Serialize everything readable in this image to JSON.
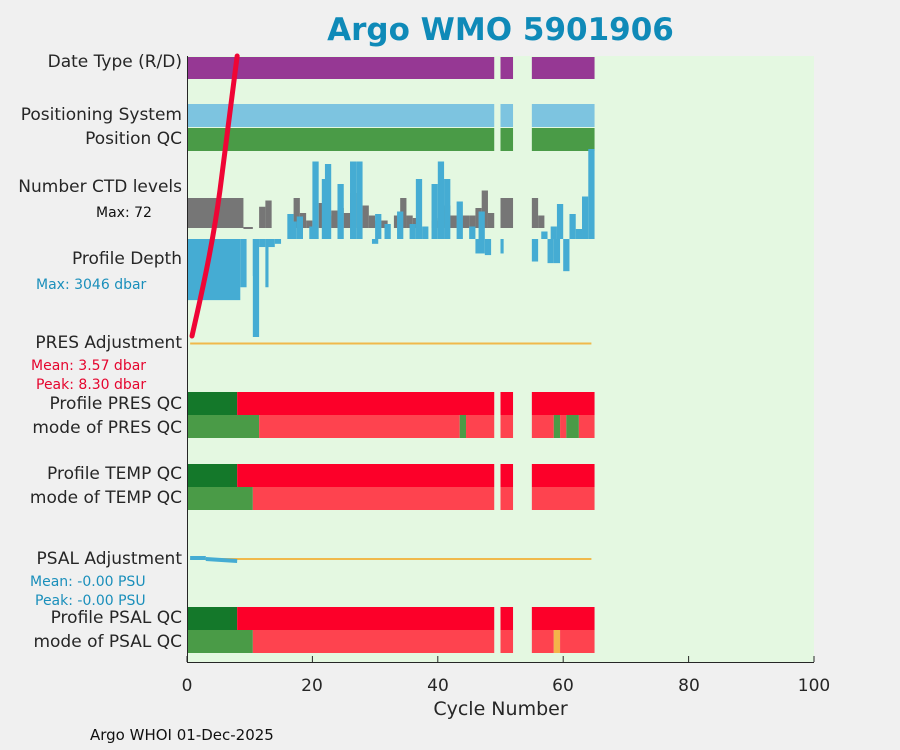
{
  "chart_data": {
    "type": "bar",
    "title": "Argo WMO 5901906",
    "xlabel": "Cycle Number",
    "xlim": [
      0,
      100
    ],
    "xticks": [
      "0",
      "20",
      "40",
      "60",
      "80",
      "100"
    ],
    "row_labels": {
      "date_type": "Date Type (R/D)",
      "positioning": "Positioning System",
      "position_qc": "Position QC",
      "ctd_levels": "Number CTD levels",
      "profile_depth": "Profile Depth",
      "pres_adj": "PRES Adjustment",
      "profile_pres_qc": "Profile PRES QC",
      "mode_pres_qc": "mode of PRES QC",
      "profile_temp_qc": "Profile TEMP QC",
      "mode_temp_qc": "mode of TEMP QC",
      "psal_adj": "PSAL Adjustment",
      "profile_psal_qc": "Profile PSAL QC",
      "mode_psal_qc": "mode of PSAL QC"
    },
    "stats": {
      "ctd_max": "Max: 72",
      "depth_max": "Max: 3046 dbar",
      "pres_mean": "Mean: 3.57 dbar",
      "pres_peak": "Peak: 8.30 dbar",
      "psal_mean": "Mean: -0.00 PSU",
      "psal_peak": "Peak: -0.00 PSU"
    },
    "cycle_segments": [
      [
        0,
        49
      ],
      [
        50,
        52
      ],
      [
        55,
        65
      ]
    ],
    "qc_segments": {
      "profile_pres_qc": [
        {
          "from": 0,
          "to": 8,
          "qc": "A"
        },
        {
          "from": 8,
          "to": 49,
          "qc": "F"
        },
        {
          "from": 50,
          "to": 52,
          "qc": "F"
        },
        {
          "from": 55,
          "to": 65,
          "qc": "F"
        }
      ],
      "mode_pres_qc": [
        {
          "from": 0,
          "to": 11.5,
          "qc": "1"
        },
        {
          "from": 11.5,
          "to": 43.5,
          "qc": "4"
        },
        {
          "from": 43.5,
          "to": 44.5,
          "qc": "1"
        },
        {
          "from": 44.5,
          "to": 49,
          "qc": "4"
        },
        {
          "from": 50,
          "to": 52,
          "qc": "4"
        },
        {
          "from": 55,
          "to": 58.5,
          "qc": "4"
        },
        {
          "from": 58.5,
          "to": 59.5,
          "qc": "1"
        },
        {
          "from": 59.5,
          "to": 60.5,
          "qc": "4"
        },
        {
          "from": 60.5,
          "to": 62.5,
          "qc": "1"
        },
        {
          "from": 62.5,
          "to": 65,
          "qc": "4"
        }
      ],
      "profile_temp_qc": [
        {
          "from": 0,
          "to": 8,
          "qc": "A"
        },
        {
          "from": 8,
          "to": 49,
          "qc": "F"
        },
        {
          "from": 50,
          "to": 52,
          "qc": "F"
        },
        {
          "from": 55,
          "to": 65,
          "qc": "F"
        }
      ],
      "mode_temp_qc": [
        {
          "from": 0,
          "to": 10.5,
          "qc": "1"
        },
        {
          "from": 10.5,
          "to": 49,
          "qc": "4"
        },
        {
          "from": 50,
          "to": 52,
          "qc": "4"
        },
        {
          "from": 55,
          "to": 65,
          "qc": "4"
        }
      ],
      "profile_psal_qc": [
        {
          "from": 0,
          "to": 8,
          "qc": "A"
        },
        {
          "from": 8,
          "to": 49,
          "qc": "F"
        },
        {
          "from": 50,
          "to": 52,
          "qc": "F"
        },
        {
          "from": 55,
          "to": 65,
          "qc": "F"
        }
      ],
      "mode_psal_qc": [
        {
          "from": 0,
          "to": 10.5,
          "qc": "1"
        },
        {
          "from": 10.5,
          "to": 49,
          "qc": "4"
        },
        {
          "from": 50,
          "to": 52,
          "qc": "4"
        },
        {
          "from": 55,
          "to": 58.5,
          "qc": "4"
        },
        {
          "from": 58.5,
          "to": 59.5,
          "qc": "3"
        },
        {
          "from": 59.5,
          "to": 65,
          "qc": "4"
        }
      ]
    },
    "ctd_levels": [
      {
        "from": 0,
        "to": 9,
        "levels": 24,
        "color": "gray"
      },
      {
        "from": 9,
        "to": 10.5,
        "levels": 0,
        "color": "gray"
      },
      {
        "from": 11.5,
        "to": 12.5,
        "levels": 17,
        "color": "gray"
      },
      {
        "from": 12.5,
        "to": 13.5,
        "levels": 22,
        "color": "gray"
      },
      {
        "from": 16,
        "to": 17,
        "levels": 20,
        "color": "blue"
      },
      {
        "from": 17,
        "to": 18,
        "levels": 24,
        "color": "gray"
      },
      {
        "from": 18,
        "to": 19,
        "levels": 12,
        "color": "gray"
      },
      {
        "from": 19,
        "to": 20,
        "levels": 6,
        "color": "gray"
      },
      {
        "from": 21,
        "to": 22,
        "levels": 20,
        "color": "gray"
      },
      {
        "from": 22,
        "to": 23,
        "levels": 10,
        "color": "gray"
      },
      {
        "from": 23,
        "to": 24,
        "levels": 14,
        "color": "gray"
      },
      {
        "from": 24,
        "to": 25,
        "levels": 16,
        "color": "gray"
      },
      {
        "from": 25,
        "to": 26,
        "levels": 12,
        "color": "gray"
      },
      {
        "from": 26,
        "to": 27,
        "levels": 28,
        "color": "gray"
      },
      {
        "from": 28,
        "to": 29,
        "levels": 18,
        "color": "gray"
      },
      {
        "from": 29,
        "to": 30,
        "levels": 10,
        "color": "gray"
      },
      {
        "from": 30,
        "to": 31,
        "levels": 6,
        "color": "gray"
      },
      {
        "from": 31,
        "to": 32,
        "levels": 6,
        "color": "gray"
      },
      {
        "from": 33,
        "to": 34,
        "levels": 10,
        "color": "gray"
      },
      {
        "from": 34,
        "to": 35,
        "levels": 24,
        "color": "gray"
      },
      {
        "from": 35,
        "to": 36,
        "levels": 10,
        "color": "gray"
      },
      {
        "from": 36,
        "to": 37,
        "levels": 8,
        "color": "gray"
      },
      {
        "from": 39,
        "to": 40,
        "levels": 6,
        "color": "gray"
      },
      {
        "from": 40,
        "to": 41,
        "levels": 8,
        "color": "gray"
      },
      {
        "from": 41,
        "to": 42,
        "levels": 18,
        "color": "gray"
      },
      {
        "from": 42,
        "to": 43,
        "levels": 10,
        "color": "gray"
      },
      {
        "from": 43,
        "to": 44,
        "levels": 10,
        "color": "gray"
      },
      {
        "from": 44,
        "to": 45,
        "levels": 10,
        "color": "gray"
      },
      {
        "from": 45,
        "to": 46,
        "levels": 10,
        "color": "gray"
      },
      {
        "from": 46,
        "to": 47,
        "levels": 16,
        "color": "gray"
      },
      {
        "from": 47,
        "to": 48,
        "levels": 30,
        "color": "gray"
      },
      {
        "from": 48,
        "to": 49,
        "levels": 12,
        "color": "gray"
      },
      {
        "from": 50,
        "to": 52,
        "levels": 24,
        "color": "gray"
      },
      {
        "from": 55,
        "to": 56,
        "levels": 24,
        "color": "gray"
      },
      {
        "from": 56,
        "to": 57,
        "levels": 10,
        "color": "gray"
      },
      {
        "from": 16.5,
        "to": 17.5,
        "levels": 14,
        "color": "blue"
      },
      {
        "from": 17.5,
        "to": 18.5,
        "levels": 18,
        "color": "blue"
      },
      {
        "from": 19.5,
        "to": 20.5,
        "levels": 10,
        "color": "blue"
      },
      {
        "from": 20,
        "to": 21,
        "levels": 62,
        "color": "blue"
      },
      {
        "from": 21.5,
        "to": 22.5,
        "levels": 48,
        "color": "blue"
      },
      {
        "from": 22,
        "to": 23,
        "levels": 60,
        "color": "blue"
      },
      {
        "from": 24,
        "to": 25,
        "levels": 44,
        "color": "blue"
      },
      {
        "from": 26,
        "to": 27,
        "levels": 62,
        "color": "blue"
      },
      {
        "from": 27,
        "to": 28,
        "levels": 62,
        "color": "blue"
      },
      {
        "from": 30,
        "to": 31,
        "levels": 20,
        "color": "blue"
      },
      {
        "from": 31.5,
        "to": 32.5,
        "levels": 12,
        "color": "blue"
      },
      {
        "from": 33.5,
        "to": 34.5,
        "levels": 22,
        "color": "blue"
      },
      {
        "from": 35.5,
        "to": 36.5,
        "levels": 12,
        "color": "blue"
      },
      {
        "from": 36.5,
        "to": 37.5,
        "levels": 48,
        "color": "blue"
      },
      {
        "from": 37.5,
        "to": 38.5,
        "levels": 10,
        "color": "blue"
      },
      {
        "from": 39,
        "to": 40,
        "levels": 44,
        "color": "blue"
      },
      {
        "from": 40,
        "to": 41,
        "levels": 62,
        "color": "blue"
      },
      {
        "from": 41,
        "to": 42,
        "levels": 48,
        "color": "blue"
      },
      {
        "from": 43,
        "to": 44,
        "levels": 30,
        "color": "blue"
      },
      {
        "from": 45,
        "to": 46,
        "levels": 10,
        "color": "blue"
      },
      {
        "from": 46.5,
        "to": 47.5,
        "levels": 22,
        "color": "blue"
      },
      {
        "from": 56.5,
        "to": 57.5,
        "levels": 6,
        "color": "blue"
      },
      {
        "from": 58,
        "to": 59,
        "levels": 10,
        "color": "blue"
      },
      {
        "from": 59,
        "to": 60,
        "levels": 28,
        "color": "blue"
      },
      {
        "from": 61,
        "to": 62,
        "levels": 20,
        "color": "blue"
      },
      {
        "from": 62,
        "to": 63,
        "levels": 8,
        "color": "blue"
      },
      {
        "from": 63,
        "to": 64,
        "levels": 34,
        "color": "blue"
      },
      {
        "from": 64,
        "to": 65,
        "levels": 72,
        "color": "blue"
      }
    ],
    "profile_depth": [
      {
        "from": 0,
        "to": 8.5,
        "depth": 1900
      },
      {
        "from": 8.5,
        "to": 9.5,
        "depth": 1500
      },
      {
        "from": 10.5,
        "to": 11,
        "depth": 1150
      },
      {
        "from": 10.5,
        "to": 11.5,
        "depth": 3046
      },
      {
        "from": 11.5,
        "to": 12.5,
        "depth": 250
      },
      {
        "from": 12.5,
        "to": 13,
        "depth": 1500
      },
      {
        "from": 13,
        "to": 14,
        "depth": 250
      },
      {
        "from": 14,
        "to": 15,
        "depth": 150
      },
      {
        "from": 29.5,
        "to": 30.5,
        "depth": 150
      },
      {
        "from": 46,
        "to": 47.5,
        "depth": 450
      },
      {
        "from": 47.5,
        "to": 48.5,
        "depth": 500
      },
      {
        "from": 50,
        "to": 50.5,
        "depth": 450
      },
      {
        "from": 55,
        "to": 56,
        "depth": 700
      },
      {
        "from": 57.5,
        "to": 58.5,
        "depth": 750
      },
      {
        "from": 58.5,
        "to": 59.5,
        "depth": 750
      },
      {
        "from": 60,
        "to": 61,
        "depth": 1000
      }
    ],
    "pres_adjustment": {
      "line_from": 0.5,
      "line_to": 64.5
    },
    "psal_adjustment": {
      "line_from": 0.5,
      "line_to": 64.5,
      "highlight_from": 0.5,
      "highlight_to": 8
    },
    "date_type_curve": {
      "start_cycle": 0.8,
      "end_cycle": 8,
      "rise": "steep"
    },
    "colors": {
      "plot_bg": "#e4f8e1",
      "date_type": "#963894",
      "positioning": "#7dc4e0",
      "position_qc": "#4a9b47",
      "ctd_gray": "#767676",
      "ctd_blue": "#45acd3",
      "depth_blue": "#45acd3",
      "adj_line": "#f0b94b",
      "psal_highlight": "#45acd3",
      "qc_A": "#14782a",
      "qc_F": "#fc0029",
      "qc_1": "#4a9b47",
      "qc_3": "#f4b34a",
      "qc_4": "#fe434f",
      "red_curve": "#ef0535",
      "pres_stats": "#e5052e",
      "psal_stats": "#1a8fbb",
      "title": "#0f8ab8"
    }
  },
  "footer": "Argo WHOI 01-Dec-2025"
}
